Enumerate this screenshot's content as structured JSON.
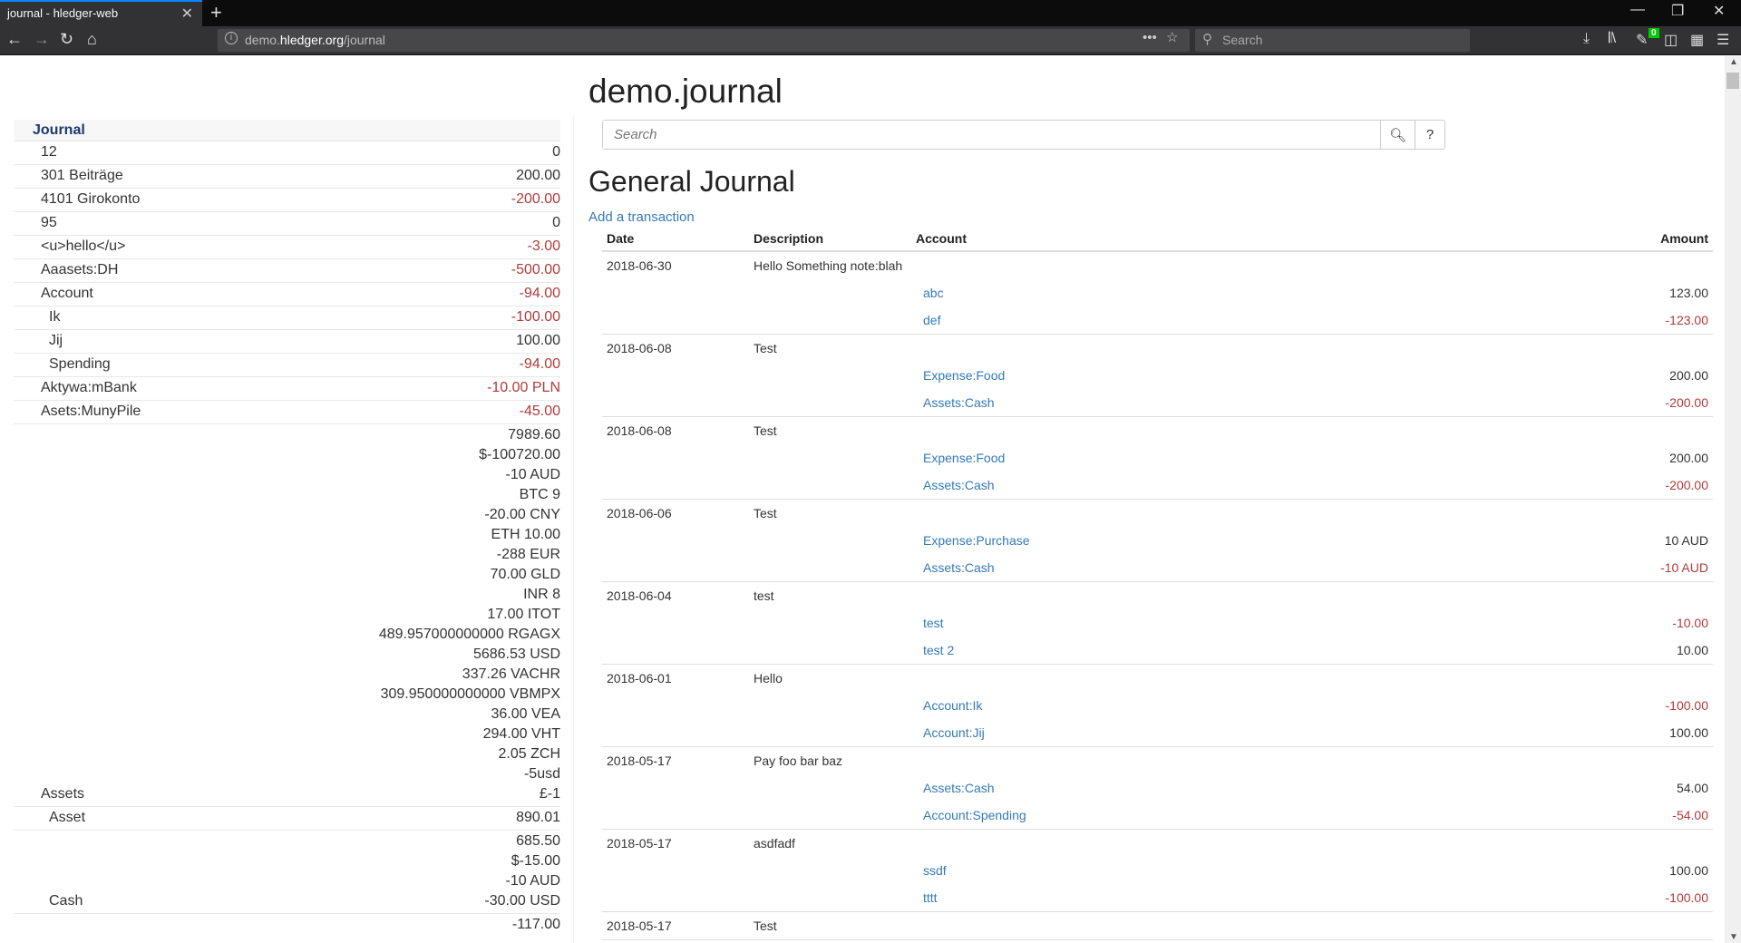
{
  "browser": {
    "tab_title": "journal - hledger-web",
    "url_prefix": "demo.",
    "url_host": "hledger.org",
    "url_path": "/journal",
    "search_placeholder": "Search",
    "badge_count": "0"
  },
  "sidebar": {
    "heading": "Journal",
    "rows": [
      {
        "name": "12",
        "indent": 0,
        "amounts": [
          "0"
        ],
        "negative": false
      },
      {
        "name": "301 Beiträge",
        "indent": 0,
        "amounts": [
          "200.00"
        ],
        "negative": false
      },
      {
        "name": "4101 Girokonto",
        "indent": 0,
        "amounts": [
          "-200.00"
        ],
        "negative": true
      },
      {
        "name": "95",
        "indent": 0,
        "amounts": [
          "0"
        ],
        "negative": false
      },
      {
        "name": "<u>hello</u>",
        "indent": 0,
        "amounts": [
          "-3.00"
        ],
        "negative": true
      },
      {
        "name": "Aaasets:DH",
        "indent": 0,
        "amounts": [
          "-500.00"
        ],
        "negative": true
      },
      {
        "name": "Account",
        "indent": 0,
        "amounts": [
          "-94.00"
        ],
        "negative": true
      },
      {
        "name": "Ik",
        "indent": 1,
        "amounts": [
          "-100.00"
        ],
        "negative": true
      },
      {
        "name": "Jij",
        "indent": 1,
        "amounts": [
          "100.00"
        ],
        "negative": false
      },
      {
        "name": "Spending",
        "indent": 1,
        "amounts": [
          "-94.00"
        ],
        "negative": true
      },
      {
        "name": "Aktywa:mBank",
        "indent": 0,
        "amounts": [
          "-10.00 PLN"
        ],
        "negative": true
      },
      {
        "name": "Asets:MunyPile",
        "indent": 0,
        "amounts": [
          "-45.00"
        ],
        "negative": true
      },
      {
        "name": "Assets",
        "indent": 0,
        "amounts": [
          "7989.60",
          "$-100720.00",
          "-10 AUD",
          "BTC 9",
          "-20.00 CNY",
          "ETH 10.00",
          "-288 EUR",
          "70.00 GLD",
          "INR 8",
          "17.00 ITOT",
          "489.957000000000 RGAGX",
          "5686.53 USD",
          "337.26 VACHR",
          "309.950000000000 VBMPX",
          "36.00 VEA",
          "294.00 VHT",
          "2.05 ZCH",
          "-5usd",
          "£-1"
        ],
        "negative": false
      },
      {
        "name": "Asset",
        "indent": 1,
        "amounts": [
          "890.01"
        ],
        "negative": false
      },
      {
        "name": "Cash",
        "indent": 1,
        "amounts": [
          "685.50",
          "$-15.00",
          "-10 AUD",
          "-30.00 USD"
        ],
        "negative": false
      },
      {
        "name": "",
        "indent": 1,
        "amounts": [
          "-117.00"
        ],
        "negative": false
      }
    ]
  },
  "main": {
    "title": "demo.journal",
    "search_placeholder": "Search",
    "help_label": "?",
    "heading": "General Journal",
    "add_link": "Add a transaction",
    "columns": [
      "Date",
      "Description",
      "Account",
      "Amount"
    ],
    "transactions": [
      {
        "date": "2018-06-30",
        "description": "Hello Something note:blah",
        "postings": [
          {
            "account": "abc",
            "amount": "123.00"
          },
          {
            "account": "def",
            "amount": "-123.00"
          }
        ]
      },
      {
        "date": "2018-06-08",
        "description": "Test",
        "postings": [
          {
            "account": "Expense:Food",
            "amount": "200.00"
          },
          {
            "account": "Assets:Cash",
            "amount": "-200.00"
          }
        ]
      },
      {
        "date": "2018-06-08",
        "description": "Test",
        "postings": [
          {
            "account": "Expense:Food",
            "amount": "200.00"
          },
          {
            "account": "Assets:Cash",
            "amount": "-200.00"
          }
        ]
      },
      {
        "date": "2018-06-06",
        "description": "Test",
        "postings": [
          {
            "account": "Expense:Purchase",
            "amount": "10 AUD"
          },
          {
            "account": "Assets:Cash",
            "amount": "-10 AUD"
          }
        ]
      },
      {
        "date": "2018-06-04",
        "description": "test",
        "postings": [
          {
            "account": "test",
            "amount": "-10.00"
          },
          {
            "account": "test 2",
            "amount": "10.00"
          }
        ]
      },
      {
        "date": "2018-06-01",
        "description": "Hello",
        "postings": [
          {
            "account": "Account:Ik",
            "amount": "-100.00"
          },
          {
            "account": "Account:Jij",
            "amount": "100.00"
          }
        ]
      },
      {
        "date": "2018-05-17",
        "description": "Pay foo bar baz",
        "postings": [
          {
            "account": "Assets:Cash",
            "amount": "54.00"
          },
          {
            "account": "Account:Spending",
            "amount": "-54.00"
          }
        ]
      },
      {
        "date": "2018-05-17",
        "description": "asdfadf",
        "postings": [
          {
            "account": "ssdf",
            "amount": "100.00"
          },
          {
            "account": "tttt",
            "amount": "-100.00"
          }
        ]
      },
      {
        "date": "2018-05-17",
        "description": "Test",
        "postings": []
      }
    ]
  },
  "colors": {
    "link": "#337ab7",
    "negative": "#b33a3a",
    "tab_accent": "#0a84ff"
  }
}
